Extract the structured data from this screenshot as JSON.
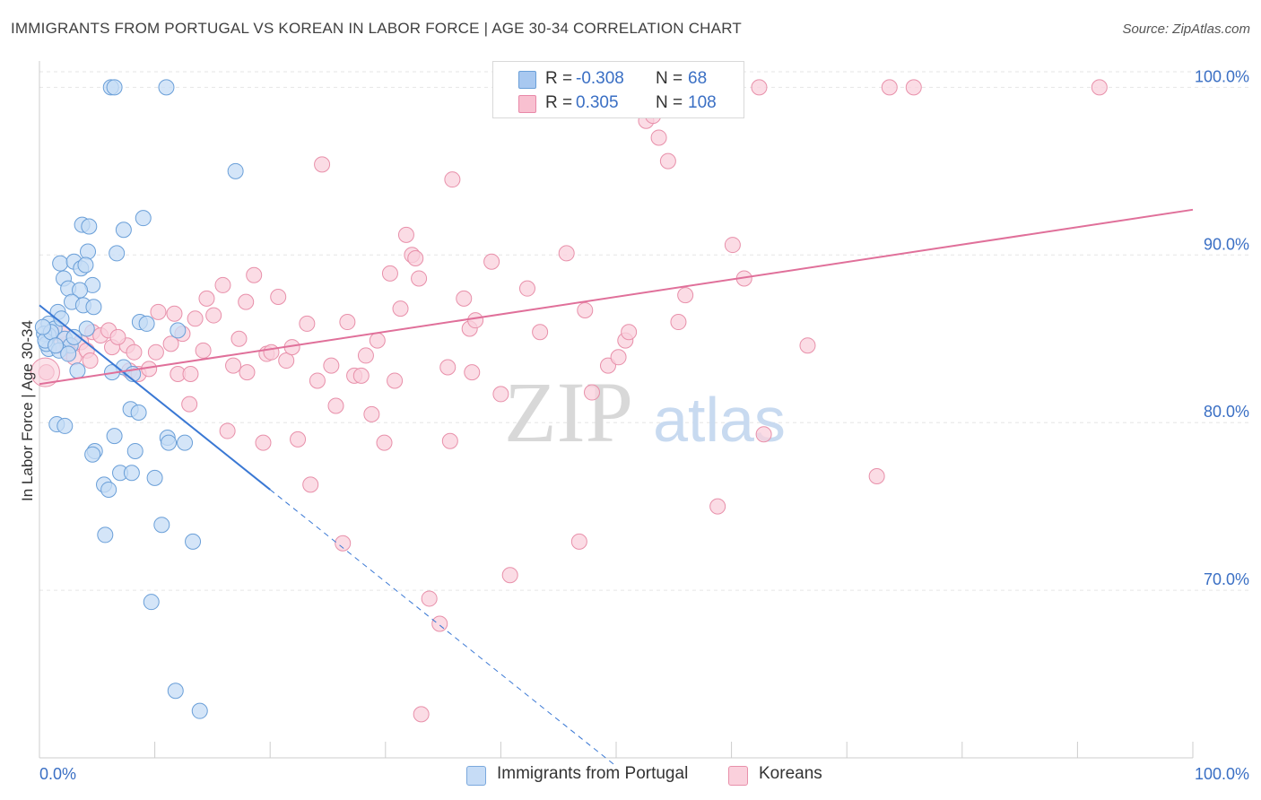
{
  "header": {
    "title": "IMMIGRANTS FROM PORTUGAL VS KOREAN IN LABOR FORCE | AGE 30-34 CORRELATION CHART",
    "source": "Source: ZipAtlas.com"
  },
  "watermark": {
    "zip": "ZIP",
    "atlas": "atlas"
  },
  "legend": {
    "rows": [
      {
        "r_label": "R =",
        "r_value": "-0.308",
        "n_label": "N =",
        "n_value": "68",
        "color": "#a8c8f0",
        "border": "#6a9fd8"
      },
      {
        "r_label": "R =",
        "r_value": "0.305",
        "n_label": "N =",
        "n_value": "108",
        "color": "#f8c0d0",
        "border": "#e888a8"
      }
    ]
  },
  "bottom_legend": {
    "items": [
      {
        "label": "Immigrants from Portugal",
        "color": "#c6dcf6",
        "border": "#7aa8dd"
      },
      {
        "label": "Koreans",
        "color": "#fad0dc",
        "border": "#e890aa"
      }
    ]
  },
  "chart_data": {
    "type": "scatter",
    "title": "IMMIGRANTS FROM PORTUGAL VS KOREAN IN LABOR FORCE | AGE 30-34 CORRELATION CHART",
    "xlabel": "",
    "ylabel": "In Labor Force | Age 30-34",
    "xlim": [
      0,
      100
    ],
    "ylim": [
      60,
      102
    ],
    "x_tick_labels": [
      "0.0%",
      "100.0%"
    ],
    "y_ticks": [
      70,
      80,
      90,
      100
    ],
    "y_tick_labels": [
      "70.0%",
      "80.0%",
      "90.0%",
      "100.0%"
    ],
    "grid": true,
    "colors": {
      "blue": "#6a9fd8",
      "blue_fill": "#c6dcf6",
      "blue_line": "#3a78d4",
      "pink": "#e890aa",
      "pink_fill": "#fad0dc",
      "pink_line": "#e0709a",
      "tick_text": "#3a6fc4"
    },
    "series": [
      {
        "name": "Immigrants from Portugal",
        "points": [
          [
            6.2,
            100.0
          ],
          [
            6.5,
            100.0
          ],
          [
            11.0,
            100.0
          ],
          [
            17.0,
            95.0
          ],
          [
            3.7,
            91.8
          ],
          [
            4.3,
            91.7
          ],
          [
            7.3,
            91.5
          ],
          [
            9.0,
            92.2
          ],
          [
            4.2,
            90.2
          ],
          [
            6.7,
            90.1
          ],
          [
            1.8,
            89.5
          ],
          [
            3.0,
            89.6
          ],
          [
            3.6,
            89.2
          ],
          [
            4.0,
            89.4
          ],
          [
            2.1,
            88.6
          ],
          [
            4.6,
            88.2
          ],
          [
            2.5,
            88.0
          ],
          [
            3.5,
            87.9
          ],
          [
            2.8,
            87.2
          ],
          [
            3.8,
            87.0
          ],
          [
            4.7,
            86.9
          ],
          [
            1.6,
            86.6
          ],
          [
            0.8,
            85.9
          ],
          [
            1.3,
            85.6
          ],
          [
            1.9,
            86.2
          ],
          [
            8.7,
            86.0
          ],
          [
            9.3,
            85.9
          ],
          [
            12.0,
            85.5
          ],
          [
            4.1,
            85.6
          ],
          [
            0.8,
            85.2
          ],
          [
            0.4,
            85.3
          ],
          [
            2.2,
            85.0
          ],
          [
            0.8,
            84.4
          ],
          [
            0.6,
            84.7
          ],
          [
            2.7,
            84.6
          ],
          [
            1.7,
            84.3
          ],
          [
            7.3,
            83.3
          ],
          [
            3.3,
            83.1
          ],
          [
            6.3,
            83.0
          ],
          [
            8.1,
            82.9
          ],
          [
            7.9,
            80.8
          ],
          [
            8.6,
            80.6
          ],
          [
            1.5,
            79.9
          ],
          [
            2.2,
            79.8
          ],
          [
            6.5,
            79.2
          ],
          [
            11.1,
            79.1
          ],
          [
            12.6,
            78.8
          ],
          [
            11.2,
            78.8
          ],
          [
            4.8,
            78.3
          ],
          [
            4.6,
            78.1
          ],
          [
            8.3,
            78.3
          ],
          [
            7.0,
            77.0
          ],
          [
            8.0,
            77.0
          ],
          [
            10.0,
            76.7
          ],
          [
            5.6,
            76.3
          ],
          [
            6.0,
            76.0
          ],
          [
            10.6,
            73.9
          ],
          [
            5.7,
            73.3
          ],
          [
            13.3,
            72.9
          ],
          [
            9.7,
            69.3
          ],
          [
            11.8,
            64.0
          ],
          [
            13.9,
            62.8
          ],
          [
            0.5,
            84.9
          ],
          [
            1.0,
            85.4
          ],
          [
            2.5,
            84.1
          ],
          [
            3.0,
            85.1
          ],
          [
            1.4,
            84.6
          ],
          [
            0.3,
            85.7
          ]
        ]
      },
      {
        "name": "Koreans",
        "points": [
          [
            0.6,
            83.0
          ],
          [
            1.7,
            84.6
          ],
          [
            2.4,
            84.7
          ],
          [
            2.5,
            84.2
          ],
          [
            3.0,
            83.9
          ],
          [
            3.6,
            84.8
          ],
          [
            4.1,
            84.3
          ],
          [
            4.4,
            83.7
          ],
          [
            4.6,
            85.4
          ],
          [
            5.3,
            85.2
          ],
          [
            6.3,
            84.5
          ],
          [
            6.0,
            85.5
          ],
          [
            7.6,
            84.6
          ],
          [
            7.8,
            83.1
          ],
          [
            8.2,
            84.2
          ],
          [
            8.6,
            82.9
          ],
          [
            10.1,
            84.2
          ],
          [
            10.3,
            86.6
          ],
          [
            11.4,
            84.7
          ],
          [
            11.7,
            86.5
          ],
          [
            12.0,
            82.9
          ],
          [
            12.4,
            85.3
          ],
          [
            13.0,
            81.1
          ],
          [
            13.1,
            82.9
          ],
          [
            13.5,
            86.2
          ],
          [
            14.2,
            84.3
          ],
          [
            14.5,
            87.4
          ],
          [
            15.1,
            86.4
          ],
          [
            15.9,
            88.2
          ],
          [
            16.3,
            79.5
          ],
          [
            16.8,
            83.4
          ],
          [
            17.3,
            85.0
          ],
          [
            17.9,
            87.2
          ],
          [
            18.6,
            88.8
          ],
          [
            19.4,
            78.8
          ],
          [
            19.7,
            84.1
          ],
          [
            20.1,
            84.2
          ],
          [
            20.7,
            87.5
          ],
          [
            21.4,
            83.7
          ],
          [
            21.9,
            84.5
          ],
          [
            22.4,
            79.0
          ],
          [
            23.2,
            85.9
          ],
          [
            23.5,
            76.3
          ],
          [
            24.1,
            82.5
          ],
          [
            24.5,
            95.4
          ],
          [
            25.3,
            83.4
          ],
          [
            25.7,
            81.0
          ],
          [
            26.3,
            72.8
          ],
          [
            26.7,
            86.0
          ],
          [
            27.3,
            82.8
          ],
          [
            27.9,
            82.8
          ],
          [
            28.3,
            84.0
          ],
          [
            28.8,
            80.5
          ],
          [
            29.3,
            84.9
          ],
          [
            29.9,
            78.8
          ],
          [
            30.4,
            88.9
          ],
          [
            30.8,
            82.5
          ],
          [
            31.3,
            86.8
          ],
          [
            31.8,
            91.2
          ],
          [
            32.3,
            90.0
          ],
          [
            32.6,
            89.8
          ],
          [
            32.9,
            88.6
          ],
          [
            33.1,
            62.6
          ],
          [
            33.8,
            69.5
          ],
          [
            34.7,
            68.0
          ],
          [
            35.4,
            83.3
          ],
          [
            35.6,
            78.9
          ],
          [
            35.8,
            94.5
          ],
          [
            36.8,
            87.4
          ],
          [
            37.3,
            85.6
          ],
          [
            37.5,
            83.0
          ],
          [
            37.8,
            86.1
          ],
          [
            39.2,
            89.6
          ],
          [
            40.0,
            81.7
          ],
          [
            40.8,
            70.9
          ],
          [
            42.3,
            88.0
          ],
          [
            43.4,
            85.4
          ],
          [
            45.7,
            90.1
          ],
          [
            46.8,
            72.9
          ],
          [
            47.3,
            86.7
          ],
          [
            47.9,
            81.8
          ],
          [
            49.3,
            83.4
          ],
          [
            50.2,
            83.9
          ],
          [
            50.8,
            84.9
          ],
          [
            51.1,
            85.4
          ],
          [
            52.6,
            98.0
          ],
          [
            53.2,
            98.3
          ],
          [
            53.7,
            97.0
          ],
          [
            54.5,
            95.6
          ],
          [
            55.4,
            86.0
          ],
          [
            56.0,
            87.6
          ],
          [
            58.8,
            75.0
          ],
          [
            60.1,
            90.6
          ],
          [
            61.1,
            88.6
          ],
          [
            62.4,
            100.0
          ],
          [
            62.8,
            79.3
          ],
          [
            66.6,
            84.6
          ],
          [
            72.6,
            76.8
          ],
          [
            73.7,
            100.0
          ],
          [
            75.8,
            100.0
          ],
          [
            91.9,
            100.0
          ],
          [
            40.3,
            100.0
          ],
          [
            57.1,
            100.0
          ],
          [
            52.0,
            100.0
          ],
          [
            9.5,
            83.2
          ],
          [
            6.8,
            85.1
          ],
          [
            18.0,
            83.0
          ],
          [
            2.0,
            85.3
          ]
        ]
      }
    ],
    "trend_lines": [
      {
        "series": "Immigrants from Portugal",
        "solid_from": [
          0,
          87.0
        ],
        "solid_to": [
          20,
          76.0
        ],
        "dashed_to": [
          50,
          59.5
        ]
      },
      {
        "series": "Koreans",
        "from": [
          0,
          82.3
        ],
        "to": [
          100,
          92.7
        ]
      }
    ]
  }
}
